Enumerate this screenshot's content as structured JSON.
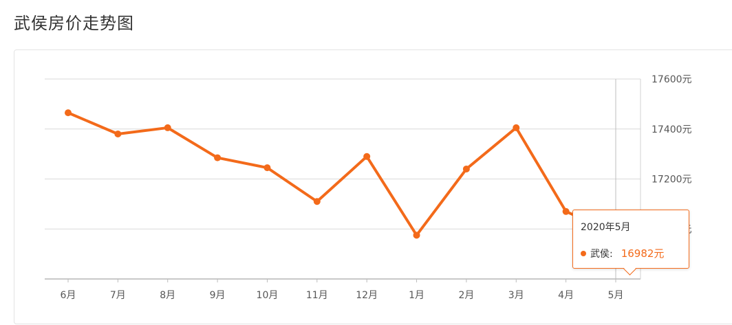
{
  "page": {
    "title": "武侯房价走势图"
  },
  "chart_data": {
    "type": "line",
    "title": "",
    "categories": [
      "6月",
      "7月",
      "8月",
      "9月",
      "10月",
      "11月",
      "12月",
      "1月",
      "2月",
      "3月",
      "4月",
      "5月"
    ],
    "series": [
      {
        "name": "武侯",
        "values": [
          17465,
          17380,
          17405,
          17285,
          17245,
          17110,
          17290,
          16975,
          17240,
          17405,
          17070,
          16982
        ]
      }
    ],
    "y_ticks": [
      17000,
      17200,
      17400,
      17600
    ],
    "y_tick_labels": [
      "17000元",
      "17200元",
      "17400元",
      "17600元"
    ],
    "ylim": [
      16800,
      17600
    ],
    "y_axis_side": "right",
    "grid": true,
    "color": "#f36a1a"
  },
  "tooltip": {
    "title": "2020年5月",
    "series_label": "武侯:",
    "value": "16982元",
    "active_index": 11
  }
}
